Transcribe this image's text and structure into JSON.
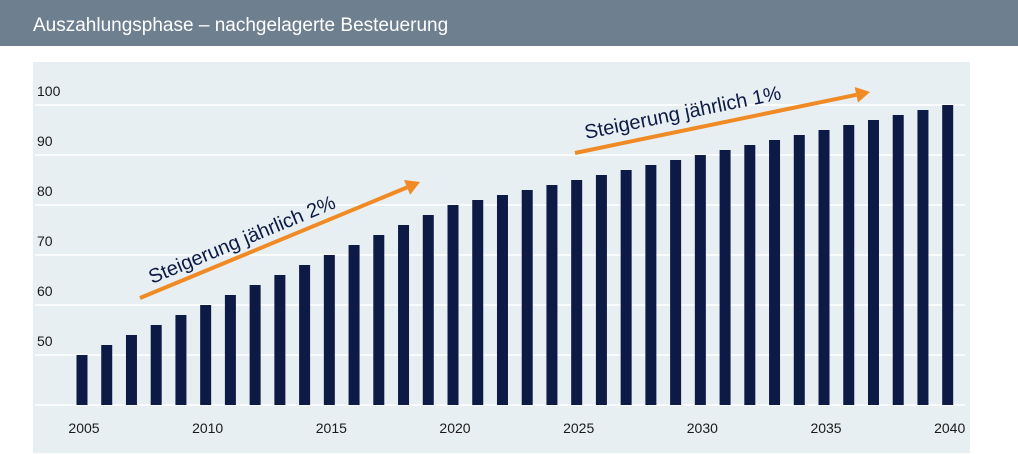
{
  "chart_data": {
    "type": "bar",
    "title": "Auszahlungsphase – nachgelagerte Besteuerung",
    "x": [
      2005,
      2006,
      2007,
      2008,
      2009,
      2010,
      2011,
      2012,
      2013,
      2014,
      2015,
      2016,
      2017,
      2018,
      2019,
      2020,
      2021,
      2022,
      2023,
      2024,
      2025,
      2026,
      2027,
      2028,
      2029,
      2030,
      2031,
      2032,
      2033,
      2034,
      2035,
      2036,
      2037,
      2038,
      2039,
      2040
    ],
    "values": [
      50,
      52,
      54,
      56,
      58,
      60,
      62,
      64,
      66,
      68,
      70,
      72,
      74,
      76,
      78,
      80,
      81,
      82,
      83,
      84,
      85,
      86,
      87,
      88,
      89,
      90,
      91,
      92,
      93,
      94,
      95,
      96,
      97,
      98,
      99,
      100
    ],
    "color": "#0d1a45",
    "xlim": [
      2003.1,
      2040.7
    ],
    "xticks": [
      2005,
      2010,
      2015,
      2020,
      2025,
      2030,
      2035,
      2040
    ],
    "ylim": [
      40,
      108
    ],
    "yticks": [
      50,
      60,
      70,
      80,
      90,
      100
    ],
    "grid": true,
    "annotations": [
      {
        "text": "Steigerung jährlich 2%",
        "color": "#f08a24"
      },
      {
        "text": "Steigerung jährlich 1%",
        "color": "#f08a24"
      }
    ]
  }
}
